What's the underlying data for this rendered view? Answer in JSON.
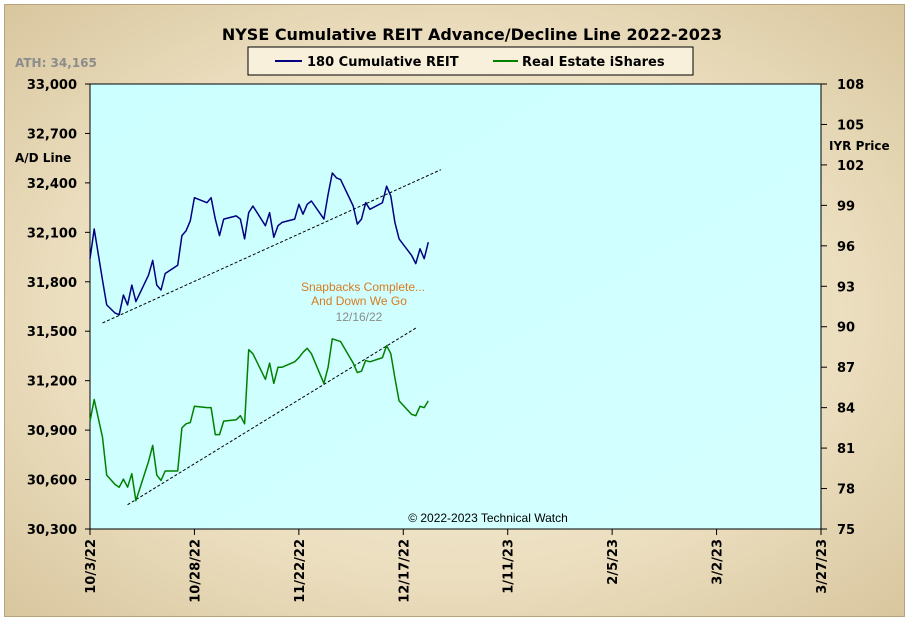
{
  "chart_data": {
    "type": "line",
    "title": "NYSE Cumulative  REIT Advance/Decline  Line 2022-2023",
    "ylabel_left": "A/D Line",
    "ylabel_right": "IYR Price",
    "ath_text": "ATH: 34,165",
    "ylim_left": [
      30300,
      33000
    ],
    "ylim_right": [
      75,
      108
    ],
    "left_ticks": [
      "33,000",
      "32,700",
      "32,400",
      "32,100",
      "31,800",
      "31,500",
      "31,200",
      "30,900",
      "30,600",
      "30,300"
    ],
    "right_ticks": [
      "108",
      "105",
      "102",
      "99",
      "96",
      "93",
      "90",
      "87",
      "84",
      "81",
      "78",
      "75"
    ],
    "x_ticks": [
      "10/3/22",
      "10/28/22",
      "11/22/22",
      "12/17/22",
      "1/11/23",
      "2/5/23",
      "3/2/23",
      "3/27/23"
    ],
    "x_tick_days": [
      0,
      25,
      50,
      75,
      100,
      125,
      150,
      175
    ],
    "legend_position": "top",
    "series": [
      {
        "name": "180 Cumulative REIT",
        "color": "#000080",
        "axis": "left",
        "days": [
          0,
          1,
          3,
          4,
          6,
          7,
          8,
          9,
          10,
          11,
          14,
          15,
          16,
          17,
          18,
          21,
          22,
          23,
          24,
          25,
          28,
          29,
          30,
          31,
          32,
          35,
          36,
          37,
          38,
          39,
          42,
          43,
          44,
          45,
          46,
          49,
          50,
          51,
          52,
          53,
          56,
          57,
          58,
          59,
          60,
          63,
          64,
          65,
          66,
          67,
          70,
          71,
          72,
          73,
          74,
          77,
          78,
          79,
          80,
          81
        ],
        "values": [
          31940,
          32120,
          31810,
          31660,
          31610,
          31600,
          31720,
          31660,
          31780,
          31680,
          31840,
          31930,
          31780,
          31750,
          31850,
          31900,
          32080,
          32110,
          32170,
          32310,
          32280,
          32310,
          32180,
          32080,
          32180,
          32200,
          32180,
          32060,
          32220,
          32260,
          32140,
          32220,
          32070,
          32140,
          32160,
          32180,
          32270,
          32210,
          32270,
          32290,
          32180,
          32330,
          32460,
          32430,
          32420,
          32260,
          32150,
          32180,
          32280,
          32240,
          32280,
          32380,
          32320,
          32160,
          32060,
          31960,
          31910,
          32000,
          31940,
          32040
        ]
      },
      {
        "name": "Real Estate iShares",
        "color": "#008000",
        "axis": "right",
        "days": [
          0,
          1,
          3,
          4,
          6,
          7,
          8,
          9,
          10,
          11,
          14,
          15,
          16,
          17,
          18,
          21,
          22,
          23,
          24,
          25,
          28,
          29,
          30,
          31,
          32,
          35,
          36,
          37,
          38,
          39,
          42,
          43,
          44,
          45,
          46,
          49,
          50,
          51,
          52,
          53,
          56,
          57,
          58,
          59,
          60,
          63,
          64,
          65,
          66,
          67,
          70,
          71,
          72,
          73,
          74,
          77,
          78,
          79,
          80,
          81
        ],
        "values": [
          83,
          84.6,
          81.8,
          79.0,
          78.3,
          78.1,
          78.7,
          78.1,
          79.1,
          77.1,
          80.0,
          81.2,
          79.0,
          78.6,
          79.3,
          79.3,
          82.5,
          82.8,
          82.9,
          84.1,
          84.0,
          84.0,
          82.0,
          82.0,
          83.0,
          83.1,
          83.4,
          82.8,
          88.3,
          88.0,
          86.1,
          87.3,
          85.8,
          87.0,
          87.0,
          87.4,
          87.7,
          88.1,
          88.4,
          88.0,
          85.8,
          87.0,
          89.1,
          89.0,
          88.9,
          87.3,
          86.6,
          86.7,
          87.5,
          87.4,
          87.7,
          88.6,
          88.0,
          86.2,
          84.5,
          83.5,
          83.4,
          84.1,
          84.0,
          84.5
        ]
      }
    ],
    "trendlines": [
      {
        "axis": "left",
        "from": [
          3,
          31550
        ],
        "to": [
          84,
          32480
        ],
        "color": "#000000",
        "dashed": true
      },
      {
        "axis": "right",
        "from": [
          9,
          76.8
        ],
        "to": [
          78,
          89.9
        ],
        "color": "#000000",
        "dashed": true
      }
    ],
    "annotations": [
      "Snapbacks Complete...",
      "And Down We Go",
      "12/16/22"
    ],
    "copyright": "© 2022-2023  Technical  Watch",
    "plot_background": "#ccffff",
    "grid": false
  }
}
